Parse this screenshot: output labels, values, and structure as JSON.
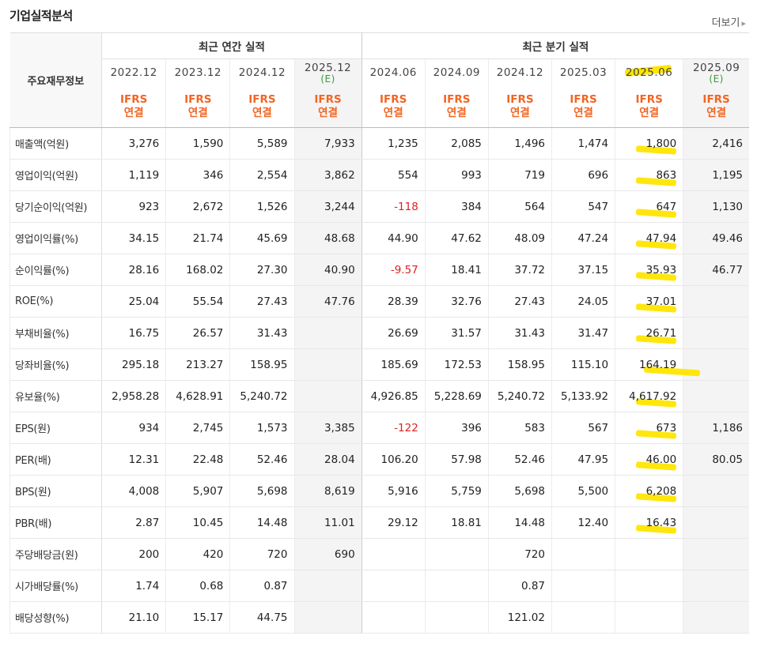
{
  "title": "기업실적분석",
  "more_label": "더보기",
  "head_label": "주요재무정보",
  "groups": {
    "annual": "최근 연간 실적",
    "quarter": "최근 분기 실적"
  },
  "columns": [
    {
      "date": "2022.12",
      "est": ""
    },
    {
      "date": "2023.12",
      "est": ""
    },
    {
      "date": "2024.12",
      "est": ""
    },
    {
      "date": "2025.12",
      "est": "(E)"
    },
    {
      "date": "2024.06",
      "est": ""
    },
    {
      "date": "2024.09",
      "est": ""
    },
    {
      "date": "2024.12",
      "est": ""
    },
    {
      "date": "2025.03",
      "est": ""
    },
    {
      "date": "2025.06",
      "est": ""
    },
    {
      "date": "2025.09",
      "est": "(E)"
    }
  ],
  "ifrs_line1": "IFRS",
  "ifrs_line2": "연결",
  "rows": [
    {
      "label": "매출액(억원)",
      "values": [
        "3,276",
        "1,590",
        "5,589",
        "7,933",
        "1,235",
        "2,085",
        "1,496",
        "1,474",
        "1,800",
        "2,416"
      ]
    },
    {
      "label": "영업이익(억원)",
      "values": [
        "1,119",
        "346",
        "2,554",
        "3,862",
        "554",
        "993",
        "719",
        "696",
        "863",
        "1,195"
      ]
    },
    {
      "label": "당기순이익(억원)",
      "values": [
        "923",
        "2,672",
        "1,526",
        "3,244",
        "-118",
        "384",
        "564",
        "547",
        "647",
        "1,130"
      ]
    },
    {
      "label": "영업이익률(%)",
      "values": [
        "34.15",
        "21.74",
        "45.69",
        "48.68",
        "44.90",
        "47.62",
        "48.09",
        "47.24",
        "47.94",
        "49.46"
      ]
    },
    {
      "label": "순이익률(%)",
      "values": [
        "28.16",
        "168.02",
        "27.30",
        "40.90",
        "-9.57",
        "18.41",
        "37.72",
        "37.15",
        "35.93",
        "46.77"
      ]
    },
    {
      "label": "ROE(%)",
      "values": [
        "25.04",
        "55.54",
        "27.43",
        "47.76",
        "28.39",
        "32.76",
        "27.43",
        "24.05",
        "37.01",
        ""
      ]
    },
    {
      "label": "부채비율(%)",
      "values": [
        "16.75",
        "26.57",
        "31.43",
        "",
        "26.69",
        "31.57",
        "31.43",
        "31.47",
        "26.71",
        ""
      ]
    },
    {
      "label": "당좌비율(%)",
      "values": [
        "295.18",
        "213.27",
        "158.95",
        "",
        "185.69",
        "172.53",
        "158.95",
        "115.10",
        "164.19",
        ""
      ]
    },
    {
      "label": "유보율(%)",
      "values": [
        "2,958.28",
        "4,628.91",
        "5,240.72",
        "",
        "4,926.85",
        "5,228.69",
        "5,240.72",
        "5,133.92",
        "4,617.92",
        ""
      ]
    },
    {
      "label": "EPS(원)",
      "values": [
        "934",
        "2,745",
        "1,573",
        "3,385",
        "-122",
        "396",
        "583",
        "567",
        "673",
        "1,186"
      ]
    },
    {
      "label": "PER(배)",
      "values": [
        "12.31",
        "22.48",
        "52.46",
        "28.04",
        "106.20",
        "57.98",
        "52.46",
        "47.95",
        "46.00",
        "80.05"
      ]
    },
    {
      "label": "BPS(원)",
      "values": [
        "4,008",
        "5,907",
        "5,698",
        "8,619",
        "5,916",
        "5,759",
        "5,698",
        "5,500",
        "6,208",
        ""
      ]
    },
    {
      "label": "PBR(배)",
      "values": [
        "2.87",
        "10.45",
        "14.48",
        "11.01",
        "29.12",
        "18.81",
        "14.48",
        "12.40",
        "16.43",
        ""
      ]
    },
    {
      "label": "주당배당금(원)",
      "values": [
        "200",
        "420",
        "720",
        "690",
        "",
        "",
        "720",
        "",
        "",
        ""
      ]
    },
    {
      "label": "시가배당률(%)",
      "values": [
        "1.74",
        "0.68",
        "0.87",
        "",
        "",
        "",
        "0.87",
        "",
        "",
        ""
      ]
    },
    {
      "label": "배당성향(%)",
      "values": [
        "21.10",
        "15.17",
        "44.75",
        "",
        "",
        "",
        "121.02",
        "",
        "",
        ""
      ]
    }
  ]
}
